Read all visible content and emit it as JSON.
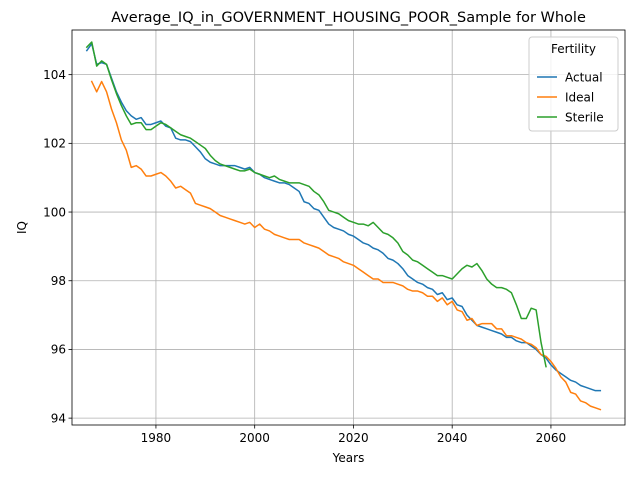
{
  "chart_data": {
    "type": "line",
    "title": "Average_IQ_in_GOVERNMENT_HOUSING_POOR_Sample for Whole",
    "xlabel": "Years",
    "ylabel": "IQ",
    "xlim": [
      1963,
      2075
    ],
    "ylim": [
      93.8,
      105.3
    ],
    "xticks": [
      1980,
      2000,
      2020,
      2040,
      2060
    ],
    "yticks": [
      94,
      96,
      98,
      100,
      102,
      104
    ],
    "grid": true,
    "legend": {
      "title": "Fertility",
      "placement": "top-right"
    },
    "series": [
      {
        "name": "Actual",
        "color": "#1f77b4",
        "x": [
          1966,
          1967,
          1968,
          1969,
          1970,
          1971,
          1972,
          1973,
          1974,
          1975,
          1976,
          1977,
          1978,
          1979,
          1980,
          1981,
          1982,
          1983,
          1984,
          1985,
          1986,
          1987,
          1988,
          1989,
          1990,
          1991,
          1992,
          1993,
          1994,
          1995,
          1996,
          1997,
          1998,
          1999,
          2000,
          2001,
          2002,
          2003,
          2004,
          2005,
          2006,
          2007,
          2008,
          2009,
          2010,
          2011,
          2012,
          2013,
          2014,
          2015,
          2016,
          2017,
          2018,
          2019,
          2020,
          2021,
          2022,
          2023,
          2024,
          2025,
          2026,
          2027,
          2028,
          2029,
          2030,
          2031,
          2032,
          2033,
          2034,
          2035,
          2036,
          2037,
          2038,
          2039,
          2040,
          2041,
          2042,
          2043,
          2044,
          2045,
          2046,
          2047,
          2048,
          2049,
          2050,
          2051,
          2052,
          2053,
          2054,
          2055,
          2056,
          2057,
          2058,
          2059,
          2060,
          2061,
          2062,
          2063,
          2064,
          2065,
          2066,
          2067,
          2068,
          2069,
          2070
        ],
        "values": [
          104.7,
          104.9,
          104.3,
          104.35,
          104.3,
          103.9,
          103.5,
          103.2,
          102.95,
          102.8,
          102.7,
          102.75,
          102.55,
          102.55,
          102.6,
          102.65,
          102.5,
          102.45,
          102.15,
          102.1,
          102.1,
          102.05,
          101.9,
          101.75,
          101.55,
          101.45,
          101.4,
          101.35,
          101.35,
          101.35,
          101.35,
          101.3,
          101.25,
          101.3,
          101.15,
          101.1,
          101.0,
          100.95,
          100.9,
          100.85,
          100.85,
          100.8,
          100.7,
          100.6,
          100.3,
          100.25,
          100.1,
          100.05,
          99.85,
          99.65,
          99.55,
          99.5,
          99.45,
          99.35,
          99.3,
          99.2,
          99.1,
          99.05,
          98.95,
          98.9,
          98.8,
          98.65,
          98.6,
          98.5,
          98.35,
          98.15,
          98.05,
          97.95,
          97.9,
          97.8,
          97.75,
          97.6,
          97.65,
          97.45,
          97.5,
          97.3,
          97.25,
          97.0,
          96.85,
          96.7,
          96.65,
          96.6,
          96.55,
          96.5,
          96.45,
          96.35,
          96.35,
          96.25,
          96.2,
          96.2,
          96.1,
          96.0,
          95.85,
          95.75,
          95.55,
          95.4,
          95.3,
          95.2,
          95.1,
          95.05,
          94.95,
          94.9,
          94.85,
          94.8,
          94.8
        ]
      },
      {
        "name": "Ideal",
        "color": "#ff7f0e",
        "x": [
          1967,
          1968,
          1969,
          1970,
          1971,
          1972,
          1973,
          1974,
          1975,
          1976,
          1977,
          1978,
          1979,
          1980,
          1981,
          1982,
          1983,
          1984,
          1985,
          1986,
          1987,
          1988,
          1989,
          1990,
          1991,
          1992,
          1993,
          1994,
          1995,
          1996,
          1997,
          1998,
          1999,
          2000,
          2001,
          2002,
          2003,
          2004,
          2005,
          2006,
          2007,
          2008,
          2009,
          2010,
          2011,
          2012,
          2013,
          2014,
          2015,
          2016,
          2017,
          2018,
          2019,
          2020,
          2021,
          2022,
          2023,
          2024,
          2025,
          2026,
          2027,
          2028,
          2029,
          2030,
          2031,
          2032,
          2033,
          2034,
          2035,
          2036,
          2037,
          2038,
          2039,
          2040,
          2041,
          2042,
          2043,
          2044,
          2045,
          2046,
          2047,
          2048,
          2049,
          2050,
          2051,
          2052,
          2053,
          2054,
          2055,
          2056,
          2057,
          2058,
          2059,
          2060,
          2061,
          2062,
          2063,
          2064,
          2065,
          2066,
          2067,
          2068,
          2069,
          2070
        ],
        "values": [
          103.8,
          103.5,
          103.8,
          103.5,
          103.0,
          102.6,
          102.1,
          101.8,
          101.3,
          101.35,
          101.25,
          101.05,
          101.05,
          101.1,
          101.15,
          101.05,
          100.9,
          100.7,
          100.75,
          100.65,
          100.55,
          100.25,
          100.2,
          100.15,
          100.1,
          100.0,
          99.9,
          99.85,
          99.8,
          99.75,
          99.7,
          99.65,
          99.7,
          99.55,
          99.65,
          99.5,
          99.45,
          99.35,
          99.3,
          99.25,
          99.2,
          99.2,
          99.2,
          99.1,
          99.05,
          99.0,
          98.95,
          98.85,
          98.75,
          98.7,
          98.65,
          98.55,
          98.5,
          98.45,
          98.35,
          98.25,
          98.15,
          98.05,
          98.05,
          97.95,
          97.95,
          97.95,
          97.9,
          97.85,
          97.75,
          97.7,
          97.7,
          97.65,
          97.55,
          97.55,
          97.4,
          97.5,
          97.3,
          97.4,
          97.15,
          97.1,
          96.85,
          96.9,
          96.7,
          96.75,
          96.75,
          96.75,
          96.6,
          96.6,
          96.4,
          96.4,
          96.35,
          96.3,
          96.2,
          96.15,
          96.05,
          95.85,
          95.8,
          95.65,
          95.45,
          95.2,
          95.05,
          94.75,
          94.7,
          94.5,
          94.45,
          94.35,
          94.3,
          94.25
        ]
      },
      {
        "name": "Sterile",
        "color": "#2ca02c",
        "x": [
          1966,
          1967,
          1968,
          1969,
          1970,
          1971,
          1972,
          1973,
          1974,
          1975,
          1976,
          1977,
          1978,
          1979,
          1980,
          1981,
          1982,
          1983,
          1984,
          1985,
          1986,
          1987,
          1988,
          1989,
          1990,
          1991,
          1992,
          1993,
          1994,
          1995,
          1996,
          1997,
          1998,
          1999,
          2000,
          2001,
          2002,
          2003,
          2004,
          2005,
          2006,
          2007,
          2008,
          2009,
          2010,
          2011,
          2012,
          2013,
          2014,
          2015,
          2016,
          2017,
          2018,
          2019,
          2020,
          2021,
          2022,
          2023,
          2024,
          2025,
          2026,
          2027,
          2028,
          2029,
          2030,
          2031,
          2032,
          2033,
          2034,
          2035,
          2036,
          2037,
          2038,
          2039,
          2040,
          2041,
          2042,
          2043,
          2044,
          2045,
          2046,
          2047,
          2048,
          2049,
          2050,
          2051,
          2052,
          2053,
          2054,
          2055,
          2056,
          2057,
          2058,
          2059
        ],
        "values": [
          104.8,
          104.95,
          104.25,
          104.4,
          104.3,
          103.85,
          103.45,
          103.1,
          102.8,
          102.55,
          102.6,
          102.6,
          102.4,
          102.4,
          102.5,
          102.6,
          102.55,
          102.45,
          102.35,
          102.25,
          102.2,
          102.15,
          102.05,
          101.95,
          101.85,
          101.65,
          101.5,
          101.4,
          101.35,
          101.3,
          101.25,
          101.2,
          101.2,
          101.25,
          101.15,
          101.1,
          101.05,
          101.0,
          101.05,
          100.95,
          100.9,
          100.85,
          100.85,
          100.85,
          100.8,
          100.75,
          100.6,
          100.5,
          100.3,
          100.05,
          100.0,
          99.95,
          99.85,
          99.75,
          99.7,
          99.65,
          99.65,
          99.6,
          99.7,
          99.55,
          99.4,
          99.35,
          99.25,
          99.1,
          98.85,
          98.75,
          98.6,
          98.55,
          98.45,
          98.35,
          98.25,
          98.15,
          98.15,
          98.1,
          98.05,
          98.2,
          98.35,
          98.45,
          98.4,
          98.5,
          98.3,
          98.05,
          97.9,
          97.8,
          97.8,
          97.75,
          97.65,
          97.3,
          96.9,
          96.9,
          97.2,
          97.15,
          96.2,
          95.5
        ]
      }
    ]
  }
}
